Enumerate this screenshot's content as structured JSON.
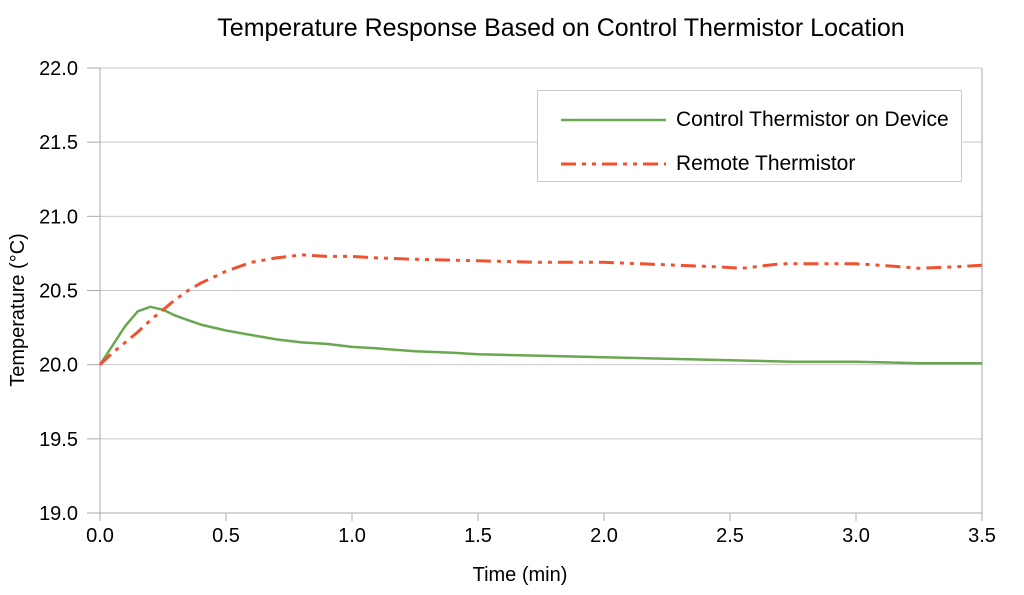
{
  "chart_data": {
    "type": "line",
    "title": "Temperature Response Based on Control Thermistor Location",
    "xlabel": "Time (min)",
    "ylabel": "Temperature (°C)",
    "xlim": [
      0.0,
      3.5
    ],
    "ylim": [
      19.0,
      22.0
    ],
    "x_ticks": [
      "0.0",
      "0.5",
      "1.0",
      "1.5",
      "2.0",
      "2.5",
      "3.0",
      "3.5"
    ],
    "y_ticks": [
      "19.0",
      "19.5",
      "20.0",
      "20.5",
      "21.0",
      "21.5",
      "22.0"
    ],
    "grid": "horizontal",
    "legend_position": "inside-top-right",
    "series": [
      {
        "name": "Control Thermistor on Device",
        "color": "#69a850",
        "style": "solid",
        "points": [
          [
            0.0,
            20.0
          ],
          [
            0.05,
            20.13
          ],
          [
            0.1,
            20.26
          ],
          [
            0.15,
            20.36
          ],
          [
            0.2,
            20.39
          ],
          [
            0.25,
            20.37
          ],
          [
            0.3,
            20.33
          ],
          [
            0.35,
            20.3
          ],
          [
            0.4,
            20.27
          ],
          [
            0.5,
            20.23
          ],
          [
            0.6,
            20.2
          ],
          [
            0.7,
            20.17
          ],
          [
            0.8,
            20.15
          ],
          [
            0.9,
            20.14
          ],
          [
            1.0,
            20.12
          ],
          [
            1.1,
            20.11
          ],
          [
            1.25,
            20.09
          ],
          [
            1.4,
            20.08
          ],
          [
            1.5,
            20.07
          ],
          [
            1.75,
            20.06
          ],
          [
            2.0,
            20.05
          ],
          [
            2.25,
            20.04
          ],
          [
            2.5,
            20.03
          ],
          [
            2.75,
            20.02
          ],
          [
            3.0,
            20.02
          ],
          [
            3.25,
            20.01
          ],
          [
            3.5,
            20.01
          ]
        ]
      },
      {
        "name": "Remote Thermistor",
        "color": "#f0512e",
        "style": "dash-dot-dot",
        "points": [
          [
            0.0,
            20.0
          ],
          [
            0.05,
            20.08
          ],
          [
            0.1,
            20.15
          ],
          [
            0.15,
            20.22
          ],
          [
            0.2,
            20.3
          ],
          [
            0.25,
            20.37
          ],
          [
            0.3,
            20.44
          ],
          [
            0.35,
            20.5
          ],
          [
            0.4,
            20.55
          ],
          [
            0.45,
            20.59
          ],
          [
            0.5,
            20.63
          ],
          [
            0.55,
            20.66
          ],
          [
            0.6,
            20.69
          ],
          [
            0.7,
            20.72
          ],
          [
            0.8,
            20.74
          ],
          [
            0.9,
            20.73
          ],
          [
            1.0,
            20.73
          ],
          [
            1.1,
            20.72
          ],
          [
            1.25,
            20.71
          ],
          [
            1.5,
            20.7
          ],
          [
            1.75,
            20.69
          ],
          [
            2.0,
            20.69
          ],
          [
            2.15,
            20.68
          ],
          [
            2.3,
            20.67
          ],
          [
            2.45,
            20.66
          ],
          [
            2.55,
            20.65
          ],
          [
            2.7,
            20.68
          ],
          [
            2.9,
            20.68
          ],
          [
            3.0,
            20.68
          ],
          [
            3.1,
            20.67
          ],
          [
            3.25,
            20.65
          ],
          [
            3.4,
            20.66
          ],
          [
            3.5,
            20.67
          ]
        ]
      }
    ]
  },
  "colors": {
    "grid": "#c9c9c9",
    "axis": "#aaaaaa",
    "tick": "#aaaaaa",
    "text": "#000000",
    "legend_border": "#c9c9c9",
    "background": "#ffffff"
  }
}
